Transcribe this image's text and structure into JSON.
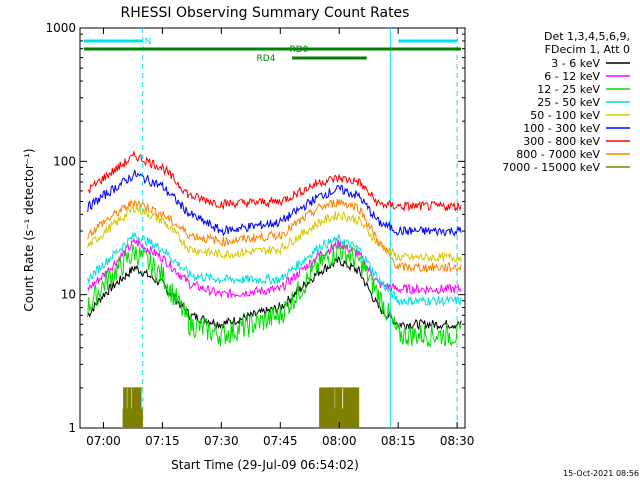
{
  "chart_data": {
    "type": "line",
    "title": "RHESSI Observing Summary Count Rates",
    "xlabel": "Start Time (29-Jul-09 06:54:02)",
    "ylabel": "Count Rate (s⁻¹ detector⁻¹)",
    "y_scale": "log",
    "ylim": [
      1,
      1000
    ],
    "xlim": [
      "06:54:02",
      "08:32:00"
    ],
    "x_ticks": [
      "07:00",
      "07:15",
      "07:30",
      "07:45",
      "08:00",
      "08:15",
      "08:30"
    ],
    "y_ticks": [
      "1",
      "10",
      "100",
      "1000"
    ],
    "legend_title_lines": [
      "Det 1,3,4,5,6,9,",
      "FDecim 1, Att 0"
    ],
    "legend_position": "right",
    "series": [
      {
        "name": "3 - 6 keV",
        "color": "#000000",
        "points": [
          [
            "06:56",
            7
          ],
          [
            "07:00",
            10
          ],
          [
            "07:08",
            16
          ],
          [
            "07:15",
            12
          ],
          [
            "07:22",
            7
          ],
          [
            "07:30",
            6
          ],
          [
            "07:45",
            8
          ],
          [
            "07:55",
            15
          ],
          [
            "08:00",
            18
          ],
          [
            "08:05",
            15
          ],
          [
            "08:10",
            8
          ],
          [
            "08:15",
            6
          ],
          [
            "08:31",
            6
          ]
        ]
      },
      {
        "name": "6 - 12 keV",
        "color": "#ff00ff",
        "points": [
          [
            "06:56",
            11
          ],
          [
            "07:00",
            14
          ],
          [
            "07:08",
            25
          ],
          [
            "07:15",
            19
          ],
          [
            "07:22",
            12
          ],
          [
            "07:30",
            10
          ],
          [
            "07:45",
            11
          ],
          [
            "07:55",
            20
          ],
          [
            "08:00",
            24
          ],
          [
            "08:05",
            20
          ],
          [
            "08:10",
            12
          ],
          [
            "08:15",
            11
          ],
          [
            "08:31",
            11
          ]
        ]
      },
      {
        "name": "12 - 25 keV",
        "color": "#00dd00",
        "points": [
          [
            "06:56",
            8
          ],
          [
            "07:00",
            12
          ],
          [
            "07:08",
            21
          ],
          [
            "07:15",
            14
          ],
          [
            "07:22",
            6
          ],
          [
            "07:30",
            5
          ],
          [
            "07:45",
            7
          ],
          [
            "07:55",
            17
          ],
          [
            "08:00",
            22
          ],
          [
            "08:05",
            18
          ],
          [
            "08:10",
            10
          ],
          [
            "08:15",
            5
          ],
          [
            "08:31",
            5
          ]
        ]
      },
      {
        "name": "25 - 50 keV",
        "color": "#00dddd",
        "points": [
          [
            "06:56",
            13
          ],
          [
            "07:00",
            17
          ],
          [
            "07:08",
            28
          ],
          [
            "07:15",
            22
          ],
          [
            "07:22",
            14
          ],
          [
            "07:30",
            13
          ],
          [
            "07:45",
            13
          ],
          [
            "07:55",
            23
          ],
          [
            "08:00",
            26
          ],
          [
            "08:05",
            22
          ],
          [
            "08:10",
            13
          ],
          [
            "08:15",
            9
          ],
          [
            "08:31",
            9
          ]
        ]
      },
      {
        "name": "50 - 100 keV",
        "color": "#d8c800",
        "points": [
          [
            "06:56",
            23
          ],
          [
            "07:00",
            29
          ],
          [
            "07:08",
            45
          ],
          [
            "07:15",
            36
          ],
          [
            "07:22",
            22
          ],
          [
            "07:30",
            20
          ],
          [
            "07:45",
            22
          ],
          [
            "07:55",
            35
          ],
          [
            "08:00",
            40
          ],
          [
            "08:05",
            36
          ],
          [
            "08:10",
            24
          ],
          [
            "08:15",
            19
          ],
          [
            "08:31",
            19
          ]
        ]
      },
      {
        "name": "100 - 300 keV",
        "color": "#0000ff",
        "points": [
          [
            "06:56",
            45
          ],
          [
            "07:00",
            55
          ],
          [
            "07:08",
            80
          ],
          [
            "07:15",
            65
          ],
          [
            "07:22",
            40
          ],
          [
            "07:30",
            30
          ],
          [
            "07:45",
            35
          ],
          [
            "07:55",
            55
          ],
          [
            "08:00",
            62
          ],
          [
            "08:05",
            55
          ],
          [
            "08:10",
            35
          ],
          [
            "08:15",
            30
          ],
          [
            "08:31",
            30
          ]
        ]
      },
      {
        "name": "300 - 800 keV",
        "color": "#ff0000",
        "points": [
          [
            "06:56",
            60
          ],
          [
            "07:00",
            75
          ],
          [
            "07:08",
            110
          ],
          [
            "07:15",
            90
          ],
          [
            "07:22",
            55
          ],
          [
            "07:30",
            48
          ],
          [
            "07:45",
            50
          ],
          [
            "07:55",
            70
          ],
          [
            "08:00",
            75
          ],
          [
            "08:05",
            70
          ],
          [
            "08:10",
            48
          ],
          [
            "08:15",
            46
          ],
          [
            "08:31",
            46
          ]
        ]
      },
      {
        "name": "800 - 7000 keV",
        "color": "#ff8000",
        "points": [
          [
            "06:56",
            28
          ],
          [
            "07:00",
            35
          ],
          [
            "07:08",
            50
          ],
          [
            "07:15",
            40
          ],
          [
            "07:22",
            28
          ],
          [
            "07:30",
            25
          ],
          [
            "07:45",
            28
          ],
          [
            "07:55",
            45
          ],
          [
            "08:00",
            50
          ],
          [
            "08:05",
            45
          ],
          [
            "08:10",
            25
          ],
          [
            "08:15",
            16
          ],
          [
            "08:31",
            16
          ]
        ]
      },
      {
        "name": "7000 - 15000 keV",
        "color": "#808000",
        "points": [
          [
            "07:05",
            2
          ],
          [
            "07:10",
            2
          ],
          [
            "07:55",
            2
          ],
          [
            "08:05",
            2
          ]
        ]
      }
    ],
    "annotations": {
      "state_bars": [
        {
          "label": "N",
          "color": "#00e0f0",
          "start": "06:55",
          "end": "07:10"
        },
        {
          "label": "",
          "color": "#00e0f0",
          "start": "08:15",
          "end": "08:30"
        },
        {
          "label": "RD0",
          "color": "#008000",
          "start": "06:55",
          "end": "08:31"
        },
        {
          "label": "RD4",
          "color": "#008000",
          "start": "07:48",
          "end": "08:07"
        }
      ],
      "vlines": [
        {
          "time": "07:10",
          "color": "#00e0f0",
          "style": "dashed"
        },
        {
          "time": "08:30",
          "color": "#00e0f0",
          "style": "dashed"
        },
        {
          "time": "08:13",
          "color": "#00e0f0",
          "style": "solid"
        }
      ]
    },
    "grid": false
  },
  "footer": {
    "timestamp": "15-Oct-2021 08:56"
  }
}
